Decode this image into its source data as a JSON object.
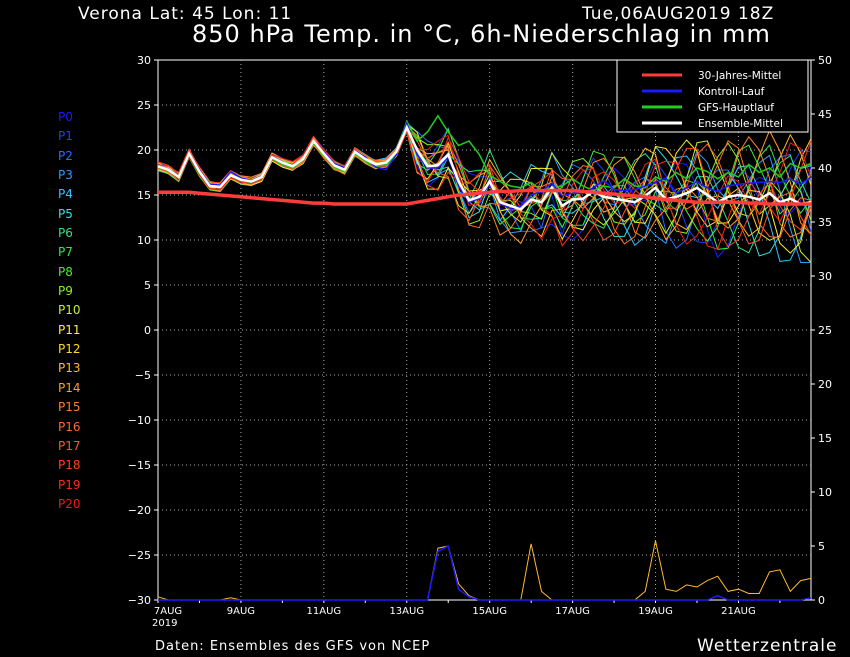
{
  "header": {
    "location": "Verona   Lat: 45  Lon: 11",
    "run": "Tue,06AUG2019  18Z",
    "title": "850 hPa Temp. in °C, 6h-Niederschlag in mm"
  },
  "footer": {
    "source": "Daten: Ensembles des GFS von NCEP",
    "brand": "Wetterzentrale"
  },
  "members": [
    "P0",
    "P1",
    "P2",
    "P3",
    "P4",
    "P5",
    "P6",
    "P7",
    "P8",
    "P9",
    "P10",
    "P11",
    "P12",
    "P13",
    "P14",
    "P15",
    "P16",
    "P17",
    "P18",
    "P19",
    "P20"
  ],
  "member_colors": [
    "#1a1aff",
    "#1f3dff",
    "#2a6cff",
    "#2d9bff",
    "#33c4ff",
    "#35e0e0",
    "#35e080",
    "#2ce84a",
    "#46ee2c",
    "#88f02a",
    "#c4f028",
    "#fff22a",
    "#ffd82a",
    "#ffbb2a",
    "#ff9c2a",
    "#ff7f2a",
    "#ff6a2a",
    "#ff552a",
    "#ff4020",
    "#ff2a1a",
    "#ee1a1a"
  ],
  "chart_data": {
    "type": "line",
    "title": "850 hPa Temp. in °C, 6h-Niederschlag in mm",
    "x_unit": "6-hourly steps from 7AUG2019 00Z",
    "x_ticks": [
      {
        "label": "7AUG",
        "step": 0
      },
      {
        "label": "9AUG",
        "step": 8
      },
      {
        "label": "11AUG",
        "step": 16
      },
      {
        "label": "13AUG",
        "step": 24
      },
      {
        "label": "15AUG",
        "step": 32
      },
      {
        "label": "17AUG",
        "step": 40
      },
      {
        "label": "19AUG",
        "step": 48
      },
      {
        "label": "21AUG",
        "step": 56
      }
    ],
    "x_year_label": "2019",
    "x_range": [
      0,
      63
    ],
    "y_left": {
      "unit": "°C",
      "range": [
        -30,
        30
      ],
      "ticks": [
        30,
        25,
        20,
        15,
        10,
        5,
        0,
        -5,
        -10,
        -15,
        -20,
        -25,
        -30
      ]
    },
    "y_right": {
      "unit": "mm",
      "range": [
        0,
        50
      ],
      "ticks": [
        50,
        45,
        40,
        35,
        30,
        25,
        20,
        15,
        10,
        5,
        0
      ]
    },
    "grid": true,
    "legend_position": "top-right",
    "legend": [
      {
        "name": "30-Jahres-Mittel",
        "color": "#ff3b3b"
      },
      {
        "name": "Kontroll-Lauf",
        "color": "#1a1aff"
      },
      {
        "name": "GFS-Hauptlauf",
        "color": "#22cc22"
      },
      {
        "name": "Ensemble-Mittel",
        "color": "#ffffff"
      }
    ],
    "climatology": [
      15.3,
      15.3,
      15.3,
      15.3,
      15.2,
      15.1,
      15.0,
      14.9,
      14.8,
      14.7,
      14.6,
      14.5,
      14.4,
      14.3,
      14.2,
      14.1,
      14.1,
      14.0,
      14.0,
      14.0,
      14.0,
      14.0,
      14.0,
      14.0,
      14.0,
      14.2,
      14.4,
      14.6,
      14.8,
      15.0,
      15.1,
      15.2,
      15.3,
      15.4,
      15.4,
      15.5,
      15.5,
      15.5,
      15.5,
      15.5,
      15.5,
      15.4,
      15.3,
      15.2,
      15.1,
      15.0,
      14.9,
      14.8,
      14.6,
      14.5,
      14.4,
      14.3,
      14.2,
      14.2,
      14.2,
      14.2,
      14.2,
      14.1,
      14.1,
      14.0,
      14.0,
      14.0,
      14.0,
      14.0
    ],
    "ensemble_mean": [
      18.2,
      17.8,
      17.0,
      19.6,
      17.6,
      16.0,
      15.9,
      17.2,
      16.7,
      16.5,
      17.0,
      19.2,
      18.6,
      18.2,
      19.0,
      21.0,
      19.6,
      18.3,
      17.8,
      19.8,
      19.0,
      18.4,
      18.6,
      19.8,
      22.5,
      20.0,
      18.2,
      18.3,
      19.5,
      16.5,
      14.4,
      14.8,
      16.5,
      14.2,
      13.8,
      13.4,
      14.5,
      14.2,
      15.8,
      13.8,
      14.5,
      14.6,
      15.4,
      14.8,
      14.6,
      14.4,
      14.2,
      14.9,
      15.8,
      14.5,
      14.8,
      15.2,
      15.8,
      15.0,
      14.2,
      14.8,
      15.0,
      14.8,
      14.5,
      15.2,
      14.2,
      14.6,
      14.0,
      14.2
    ],
    "control_run": [
      18.3,
      17.9,
      17.1,
      19.7,
      17.8,
      16.2,
      16.1,
      17.6,
      16.9,
      16.6,
      17.1,
      19.3,
      18.7,
      18.2,
      19.1,
      21.1,
      19.8,
      18.5,
      18.0,
      19.9,
      19.2,
      18.1,
      17.8,
      19.5,
      23.0,
      19.5,
      18.0,
      18.0,
      19.2,
      16.0,
      14.2,
      14.6,
      16.2,
      14.0,
      13.5,
      13.8,
      15.0,
      15.4,
      16.3,
      14.9,
      15.2,
      15.2,
      15.8,
      16.6,
      15.6,
      15.5,
      15.6,
      16.0,
      16.4,
      16.9,
      15.2,
      15.8,
      16.5,
      15.8,
      15.4,
      16.0,
      16.2,
      16.3,
      16.4,
      16.5,
      16.4,
      16.8,
      16.2,
      17.0
    ],
    "main_run": [
      18.1,
      17.7,
      17.2,
      19.5,
      17.4,
      16.1,
      16.0,
      17.1,
      16.6,
      16.4,
      17.0,
      19.0,
      18.4,
      18.0,
      18.9,
      20.8,
      19.4,
      18.1,
      17.6,
      19.6,
      18.8,
      18.2,
      18.3,
      19.6,
      23.2,
      21.0,
      22.0,
      23.8,
      22.0,
      20.5,
      21.0,
      19.5,
      17.2,
      16.5,
      16.0,
      15.8,
      16.4,
      15.5,
      15.8,
      16.0,
      16.8,
      16.0,
      15.5,
      16.0,
      15.8,
      16.8,
      16.0,
      15.8,
      17.0,
      16.5,
      17.5,
      16.8,
      18.0,
      17.6,
      16.8,
      17.5,
      17.0,
      18.4,
      17.5,
      18.0,
      17.0,
      18.5,
      18.0,
      18.5
    ],
    "precip_control_mm": [
      0,
      0,
      0,
      0,
      0,
      0,
      0,
      0,
      0,
      0,
      0,
      0,
      0,
      0,
      0,
      0,
      0,
      0,
      0,
      0,
      0,
      0,
      0,
      0,
      0,
      0,
      0,
      4.5,
      5.0,
      1.0,
      0.3,
      0,
      0,
      0,
      0,
      0,
      0,
      0,
      0,
      0,
      0,
      0,
      0,
      0,
      0,
      0,
      0,
      0,
      0,
      0,
      0,
      0,
      0,
      0,
      0.4,
      0,
      0,
      0,
      0,
      0,
      0,
      0,
      0,
      0.2
    ],
    "precip_max_mm": [
      0.3,
      0,
      0,
      0,
      0,
      0,
      0,
      0.2,
      0,
      0,
      0,
      0,
      0,
      0,
      0,
      0,
      0,
      0,
      0,
      0,
      0,
      0,
      0,
      0,
      0,
      0,
      0,
      4.8,
      5.0,
      1.5,
      0.4,
      0,
      0,
      0,
      0,
      0,
      5.2,
      0.8,
      0,
      0,
      0,
      0,
      0,
      0,
      0,
      0,
      0,
      0.8,
      5.5,
      1.0,
      0.8,
      1.4,
      1.2,
      1.8,
      2.2,
      0.8,
      1.0,
      0.6,
      0.6,
      2.6,
      2.8,
      0.8,
      1.8,
      2.0
    ]
  }
}
